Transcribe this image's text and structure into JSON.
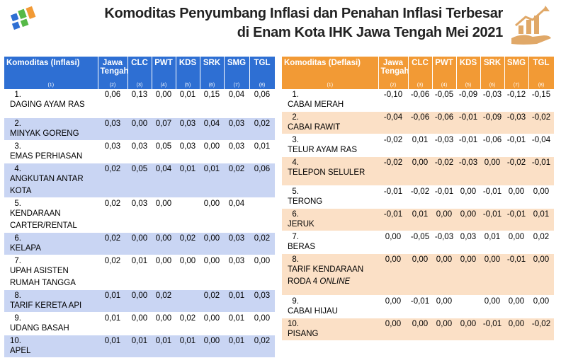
{
  "title": {
    "line1": "Komoditas Penyumbang Inflasi dan Penahan Inflasi Terbesar",
    "line2": "di Enam Kota IHK Jawa Tengah Mei 2021"
  },
  "colors": {
    "left_header": "#2e6fd3",
    "right_header": "#f29a35",
    "left_alt": "#c9d5f3",
    "right_alt": "#fbe0c6"
  },
  "left": {
    "headers": [
      "Komoditas (Inflasi)",
      "Jawa Tengah",
      "CLC",
      "PWT",
      "KDS",
      "SRK",
      "SMG",
      "TGL"
    ],
    "colnums": [
      "(1)",
      "(2)",
      "(3)",
      "(4)",
      "(5)",
      "(6)",
      "(7)",
      "(8)"
    ],
    "rows": [
      {
        "no": "1.",
        "name": "DAGING AYAM RAS",
        "vals": [
          "0,06",
          "0,13",
          "0,00",
          "0,01",
          "0,15",
          "0,04",
          "0,06"
        ]
      },
      {
        "no": "2.",
        "name": "MINYAK GORENG",
        "vals": [
          "0,03",
          "0,00",
          "0,07",
          "0,03",
          "0,04",
          "0,03",
          "0,02"
        ]
      },
      {
        "no": "3.",
        "name": "EMAS PERHIASAN",
        "vals": [
          "0,03",
          "0,03",
          "0,05",
          "0,03",
          "0,00",
          "0,03",
          "0,01"
        ]
      },
      {
        "no": "4.",
        "name": "ANGKUTAN ANTAR KOTA",
        "vals": [
          "0,02",
          "0,05",
          "0,04",
          "0,01",
          "0,01",
          "0,02",
          "0,06"
        ]
      },
      {
        "no": "5.",
        "name": "KENDARAAN CARTER/RENTAL",
        "vals": [
          "0,02",
          "0,03",
          "0,00",
          "",
          "0,00",
          "0,04",
          ""
        ]
      },
      {
        "no": "6.",
        "name": "KELAPA",
        "vals": [
          "0,02",
          "0,00",
          "0,00",
          "0,02",
          "0,00",
          "0,03",
          "0,02"
        ]
      },
      {
        "no": "7.",
        "name": "UPAH ASISTEN RUMAH TANGGA",
        "vals": [
          "0,02",
          "0,01",
          "0,00",
          "0,00",
          "0,00",
          "0,03",
          "0,00"
        ]
      },
      {
        "no": "8.",
        "name": "TARIF KERETA API",
        "vals": [
          "0,01",
          "0,00",
          "0,02",
          "",
          "0,02",
          "0,01",
          "0,03"
        ]
      },
      {
        "no": "9.",
        "name": "UDANG BASAH",
        "vals": [
          "0,01",
          "0,00",
          "0,00",
          "0,02",
          "0,00",
          "0,01",
          "0,00"
        ]
      },
      {
        "no": "10.",
        "name": "APEL",
        "vals": [
          "0,01",
          "0,01",
          "0,01",
          "0,01",
          "0,00",
          "0,01",
          "0,02"
        ]
      }
    ]
  },
  "right": {
    "headers": [
      "Komoditas (Deflasi)",
      "Jawa Tengah",
      "CLC",
      "PWT",
      "KDS",
      "SRK",
      "SMG",
      "TGL"
    ],
    "colnums": [
      "(1)",
      "(2)",
      "(3)",
      "(4)",
      "(5)",
      "(6)",
      "(7)",
      "(8)"
    ],
    "rows": [
      {
        "no": "1.",
        "name": "CABAI MERAH",
        "vals": [
          "-0,10",
          "-0,06",
          "-0,05",
          "-0,09",
          "-0,03",
          "-0,12",
          "-0,15"
        ]
      },
      {
        "no": "2.",
        "name": "CABAI RAWIT",
        "vals": [
          "-0,04",
          "-0,06",
          "-0,06",
          "-0,01",
          "-0,09",
          "-0,03",
          "-0,02"
        ]
      },
      {
        "no": "3.",
        "name": "TELUR AYAM RAS",
        "vals": [
          "-0,02",
          "0,01",
          "-0,03",
          "-0,01",
          "-0,06",
          "-0,01",
          "-0,04"
        ]
      },
      {
        "no": "4.",
        "name": "TELEPON SELULER",
        "vals": [
          "-0,02",
          "0,00",
          "-0,02",
          "-0,03",
          "0,00",
          "-0,02",
          "-0,01"
        ]
      },
      {
        "no": "5.",
        "name": "TERONG",
        "vals": [
          "-0,01",
          "-0,02",
          "-0,01",
          "0,00",
          "-0,01",
          "0,00",
          "0,00"
        ]
      },
      {
        "no": "6.",
        "name": "JERUK",
        "vals": [
          "-0,01",
          "0,01",
          "0,00",
          "0,00",
          "-0,01",
          "-0,01",
          "0,01"
        ]
      },
      {
        "no": "7.",
        "name": "BERAS",
        "vals": [
          "0,00",
          "-0,05",
          "-0,03",
          "0,03",
          "0,01",
          "0,00",
          "0,02"
        ]
      },
      {
        "no": "8.",
        "name": "TARIF KENDARAAN RODA 4",
        "name_italic": "ONLINE",
        "vals": [
          "0,00",
          "0,00",
          "0,00",
          "0,00",
          "0,00",
          "-0,01",
          "0,00"
        ]
      },
      {
        "no": "9.",
        "name": "CABAI HIJAU",
        "vals": [
          "0,00",
          "-0,01",
          "0,00",
          "",
          "0,00",
          "0,00",
          "0,00"
        ]
      },
      {
        "no": "10.",
        "name": "PISANG",
        "vals": [
          "0,00",
          "0,00",
          "0,00",
          "0,00",
          "-0,01",
          "0,00",
          "-0,02"
        ]
      }
    ]
  }
}
